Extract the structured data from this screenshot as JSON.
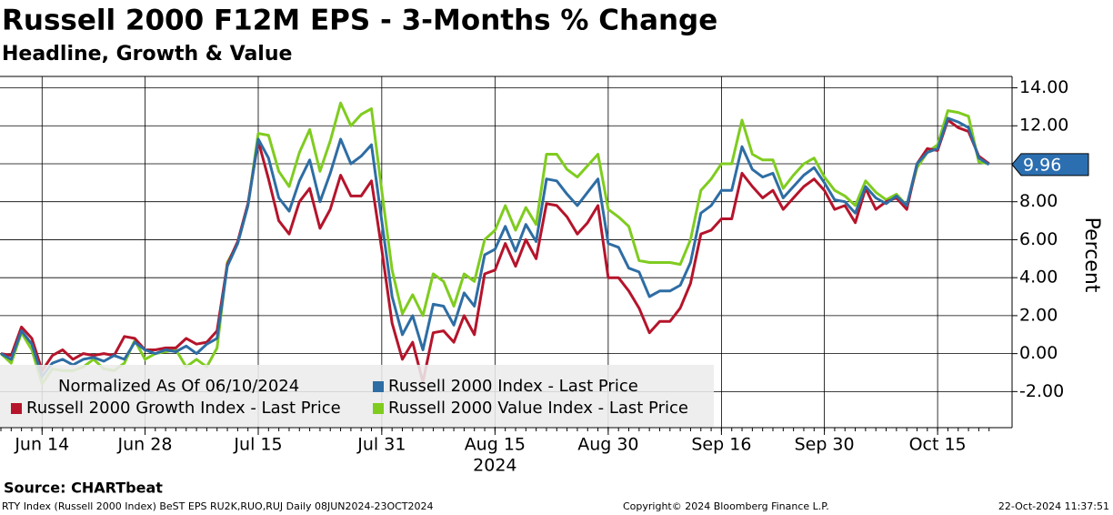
{
  "chart_data": {
    "type": "line",
    "title": "Russell 2000 F12M EPS - 3-Months % Change",
    "subtitle": "Headline, Growth & Value",
    "ylabel": "Percent",
    "xlabel": "2024",
    "source": "Source: CHARTbeat",
    "footer_left": "RTY Index (Russell 2000 Index) BeST EPS RU2K,RUO,RUJ  Daily 08JUN2024-23OCT2024",
    "footer_center": "Copyright© 2024 Bloomberg Finance L.P.",
    "footer_right": "22-Oct-2024 11:37:51",
    "legend_note": "Normalized As Of 06/10/2024",
    "legend": "lower left",
    "grid": true,
    "ylim": [
      -3.9,
      14.6
    ],
    "yticks": [
      {
        "value": -2,
        "label": "-2.00"
      },
      {
        "value": 0,
        "label": "0.00"
      },
      {
        "value": 2,
        "label": "2.00"
      },
      {
        "value": 4,
        "label": "4.00"
      },
      {
        "value": 6,
        "label": "6.00"
      },
      {
        "value": 8,
        "label": "8.00"
      },
      {
        "value": 10,
        "label": "10.00"
      },
      {
        "value": 12,
        "label": "12.00"
      },
      {
        "value": 14,
        "label": "14.00"
      }
    ],
    "last_value_tag": {
      "value": 9.96,
      "label": "9.96",
      "color": "#2c6fb0"
    },
    "categories": [
      null,
      null,
      null,
      null,
      "Jun 14",
      null,
      null,
      null,
      null,
      null,
      null,
      null,
      null,
      null,
      "Jun 28",
      null,
      null,
      null,
      null,
      null,
      null,
      null,
      null,
      null,
      null,
      "Jul 15",
      null,
      null,
      null,
      null,
      null,
      null,
      null,
      null,
      null,
      null,
      null,
      "Jul 31",
      null,
      null,
      null,
      null,
      null,
      null,
      null,
      null,
      null,
      null,
      "Aug 15",
      null,
      null,
      null,
      null,
      null,
      null,
      null,
      null,
      null,
      null,
      "Aug 30",
      null,
      null,
      null,
      null,
      null,
      null,
      null,
      null,
      null,
      null,
      "Sep 16",
      null,
      null,
      null,
      null,
      null,
      null,
      null,
      null,
      null,
      "Sep 30",
      null,
      null,
      null,
      null,
      null,
      null,
      null,
      null,
      null,
      null,
      "Oct 15",
      null,
      null,
      null,
      null,
      null
    ],
    "series": [
      {
        "name": "Russell 2000 Index - Last Price",
        "color": "#2e6da4",
        "values": [
          0,
          -0.3,
          1.2,
          0.5,
          -1.2,
          -0.5,
          -0.3,
          -0.6,
          -0.3,
          -0.2,
          -0.4,
          -0.1,
          -0.3,
          0.6,
          0.2,
          0.0,
          0.2,
          0.1,
          0.4,
          0.0,
          0.5,
          0.8,
          4.6,
          5.8,
          7.8,
          11.3,
          10.3,
          8.2,
          7.5,
          9.1,
          10.2,
          8.0,
          9.5,
          11.3,
          10.0,
          10.4,
          11.0,
          7.0,
          3.0,
          1.0,
          2.0,
          0.2,
          2.6,
          2.5,
          1.5,
          3.2,
          2.5,
          5.2,
          5.5,
          6.7,
          5.4,
          6.8,
          5.9,
          9.2,
          9.1,
          8.4,
          7.8,
          8.5,
          9.2,
          5.8,
          5.6,
          4.5,
          4.3,
          3.0,
          3.3,
          3.3,
          3.6,
          4.8,
          7.4,
          7.8,
          8.6,
          8.6,
          10.9,
          9.7,
          9.3,
          9.5,
          8.2,
          8.8,
          9.4,
          9.8,
          9.0,
          8.1,
          8.0,
          7.4,
          8.8,
          8.2,
          7.9,
          8.3,
          7.8,
          10.0,
          10.6,
          10.8,
          12.4,
          12.2,
          11.9,
          10.3,
          9.96
        ]
      },
      {
        "name": "Russell 2000 Growth Index - Last Price",
        "color": "#b5142b",
        "values": [
          0,
          -0.1,
          1.4,
          0.8,
          -0.9,
          -0.1,
          0.2,
          -0.3,
          0.0,
          -0.1,
          0.0,
          -0.1,
          0.9,
          0.8,
          0.2,
          0.2,
          0.3,
          0.3,
          0.8,
          0.5,
          0.6,
          1.2,
          4.7,
          5.9,
          7.9,
          11.2,
          9.2,
          7.0,
          6.3,
          8.0,
          8.7,
          6.6,
          7.6,
          9.4,
          8.3,
          8.3,
          9.1,
          5.5,
          1.6,
          -0.3,
          0.6,
          -1.5,
          1.1,
          1.2,
          0.6,
          2.0,
          1.0,
          4.2,
          4.4,
          5.8,
          4.6,
          6.0,
          5.0,
          7.9,
          7.8,
          7.2,
          6.3,
          6.9,
          7.8,
          4.0,
          4.0,
          3.3,
          2.4,
          1.1,
          1.7,
          1.7,
          2.4,
          3.7,
          6.3,
          6.5,
          7.1,
          7.1,
          9.5,
          8.8,
          8.2,
          8.6,
          7.6,
          8.2,
          8.8,
          9.2,
          8.6,
          7.6,
          7.8,
          6.9,
          8.7,
          7.6,
          8.0,
          8.2,
          7.6,
          10.0,
          10.8,
          10.7,
          12.3,
          11.9,
          11.7,
          10.4,
          10.0
        ]
      },
      {
        "name": "Russell 2000 Value Index - Last Price",
        "color": "#7fcc1f",
        "values": [
          0,
          -0.5,
          1.1,
          0.2,
          -1.6,
          -0.8,
          -0.9,
          -0.9,
          -0.7,
          -0.3,
          -0.8,
          -0.9,
          -0.5,
          0.7,
          -0.3,
          0.0,
          0.1,
          0.2,
          -0.7,
          -0.3,
          -0.7,
          0.3,
          4.8,
          5.8,
          7.8,
          11.6,
          11.5,
          9.6,
          8.8,
          10.6,
          11.8,
          9.6,
          11.2,
          13.2,
          12.0,
          12.6,
          12.9,
          8.6,
          4.4,
          2.1,
          3.1,
          2.0,
          4.2,
          3.8,
          2.5,
          4.2,
          3.8,
          6.0,
          6.5,
          7.8,
          6.5,
          7.7,
          6.8,
          10.5,
          10.5,
          9.7,
          9.3,
          9.9,
          10.5,
          7.6,
          7.2,
          6.7,
          4.9,
          4.8,
          4.8,
          4.8,
          4.7,
          6.0,
          8.6,
          9.2,
          10.0,
          10.0,
          12.3,
          10.5,
          10.2,
          10.2,
          8.7,
          9.4,
          10.0,
          10.3,
          9.3,
          8.6,
          8.3,
          7.8,
          9.1,
          8.5,
          8.1,
          8.4,
          7.8,
          9.8,
          10.6,
          11.0,
          12.8,
          12.7,
          12.5,
          10.1,
          10.0
        ]
      }
    ]
  }
}
